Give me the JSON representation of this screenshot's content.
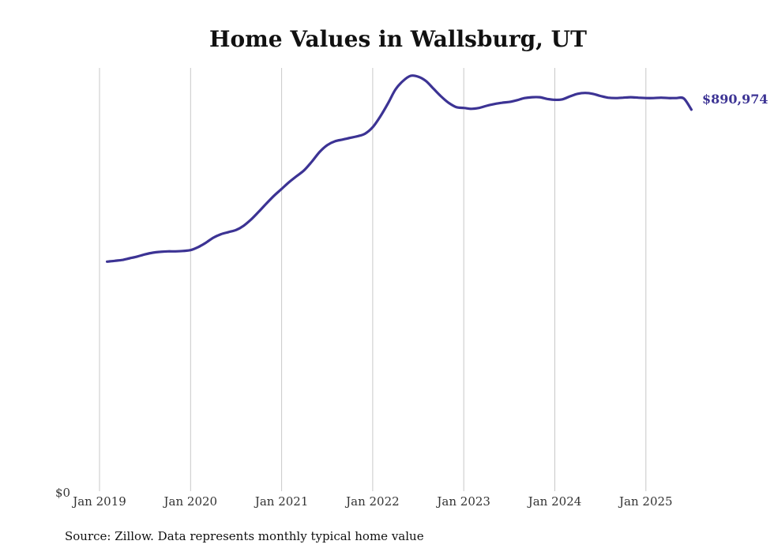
{
  "chart_data": {
    "type": "line",
    "title": "Home Values in Wallsburg, UT",
    "xlabel": "",
    "ylabel": "",
    "x_ticks": [
      "Jan 2019",
      "Jan 2020",
      "Jan 2021",
      "Jan 2022",
      "Jan 2023",
      "Jan 2024",
      "Jan 2025"
    ],
    "y_ticks": [
      "$0"
    ],
    "ylim": [
      0,
      1000000
    ],
    "grid": "vertical",
    "series": [
      {
        "color": "#3c3394",
        "x": [
          "2019-02",
          "2019-03",
          "2019-04",
          "2019-05",
          "2019-06",
          "2019-07",
          "2019-08",
          "2019-09",
          "2019-10",
          "2019-11",
          "2019-12",
          "2020-01",
          "2020-02",
          "2020-03",
          "2020-04",
          "2020-05",
          "2020-06",
          "2020-07",
          "2020-08",
          "2020-09",
          "2020-10",
          "2020-11",
          "2020-12",
          "2021-01",
          "2021-02",
          "2021-03",
          "2021-04",
          "2021-05",
          "2021-06",
          "2021-07",
          "2021-08",
          "2021-09",
          "2021-10",
          "2021-11",
          "2021-12",
          "2022-01",
          "2022-02",
          "2022-03",
          "2022-04",
          "2022-05",
          "2022-06",
          "2022-07",
          "2022-08",
          "2022-09",
          "2022-10",
          "2022-11",
          "2022-12",
          "2023-01",
          "2023-02",
          "2023-03",
          "2023-04",
          "2023-05",
          "2023-06",
          "2023-07",
          "2023-08",
          "2023-09",
          "2023-10",
          "2023-11",
          "2023-12",
          "2024-01",
          "2024-02",
          "2024-03",
          "2024-04",
          "2024-05",
          "2024-06",
          "2024-07",
          "2024-08",
          "2024-09",
          "2024-10",
          "2024-11",
          "2024-12",
          "2025-01",
          "2025-02",
          "2025-03",
          "2025-04",
          "2025-05",
          "2025-06",
          "2025-07"
        ],
        "y": [
          536000,
          538000,
          540000,
          544000,
          548000,
          553000,
          557000,
          559000,
          560000,
          560000,
          561000,
          563000,
          570000,
          580000,
          592000,
          600000,
          605000,
          610000,
          620000,
          635000,
          653000,
          672000,
          690000,
          706000,
          722000,
          736000,
          750000,
          770000,
          792000,
          808000,
          817000,
          821000,
          825000,
          829000,
          835000,
          850000,
          875000,
          905000,
          938000,
          958000,
          970000,
          968000,
          958000,
          940000,
          922000,
          907000,
          897000,
          895000,
          893000,
          895000,
          900000,
          904000,
          907000,
          909000,
          913000,
          918000,
          920000,
          920000,
          916000,
          914000,
          915000,
          922000,
          928000,
          930000,
          928000,
          923000,
          919000,
          918000,
          919000,
          920000,
          919000,
          918000,
          918000,
          919000,
          918000,
          918000,
          917000,
          891000
        ],
        "end_label": "$890,974"
      }
    ],
    "source": "Source: Zillow. Data represents monthly typical home value"
  }
}
